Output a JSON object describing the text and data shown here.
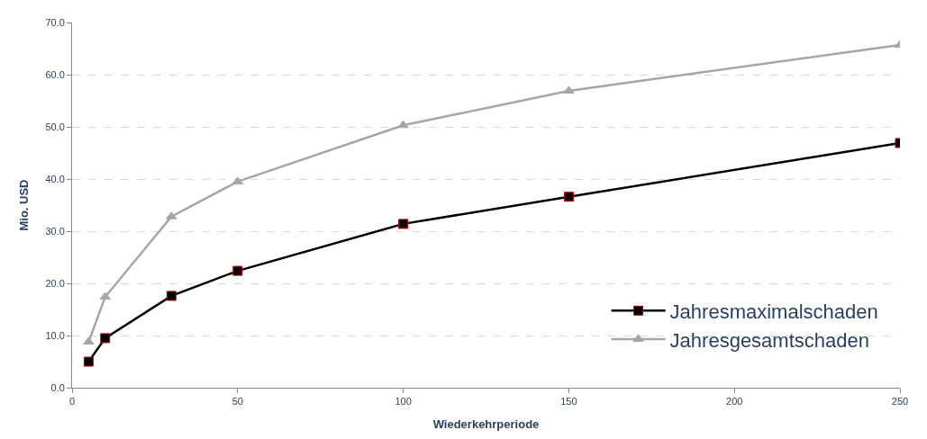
{
  "chart_data": {
    "type": "line",
    "xlabel": "Wiederkehrperiode",
    "ylabel": "Mio. USD",
    "x": [
      5,
      10,
      30,
      50,
      100,
      150,
      250
    ],
    "series": [
      {
        "name": "Jahresmaximalschaden",
        "color": "#000000",
        "marker": "square",
        "values": [
          5.0,
          9.5,
          17.6,
          22.4,
          31.4,
          36.6,
          46.9
        ]
      },
      {
        "name": "Jahresgesamtschaden",
        "color": "#a6a6a6",
        "marker": "triangle",
        "values": [
          8.8,
          17.4,
          32.8,
          39.5,
          50.3,
          56.9,
          65.7
        ]
      }
    ],
    "xlim": [
      0,
      250
    ],
    "xticks": [
      0,
      50,
      100,
      150,
      200,
      250
    ],
    "ylim": [
      0,
      70
    ],
    "yticks": [
      {
        "value": 0,
        "label": "0.0"
      },
      {
        "value": 10,
        "label": "10.0"
      },
      {
        "value": 20,
        "label": "20.0"
      },
      {
        "value": 30,
        "label": "30.0"
      },
      {
        "value": 40,
        "label": "40.0"
      },
      {
        "value": 50,
        "label": "50.0"
      },
      {
        "value": 60,
        "label": "60.0"
      },
      {
        "value": 70,
        "label": "70.0"
      }
    ],
    "grid": "y",
    "legend": "bottom right",
    "line_style": "solid"
  }
}
